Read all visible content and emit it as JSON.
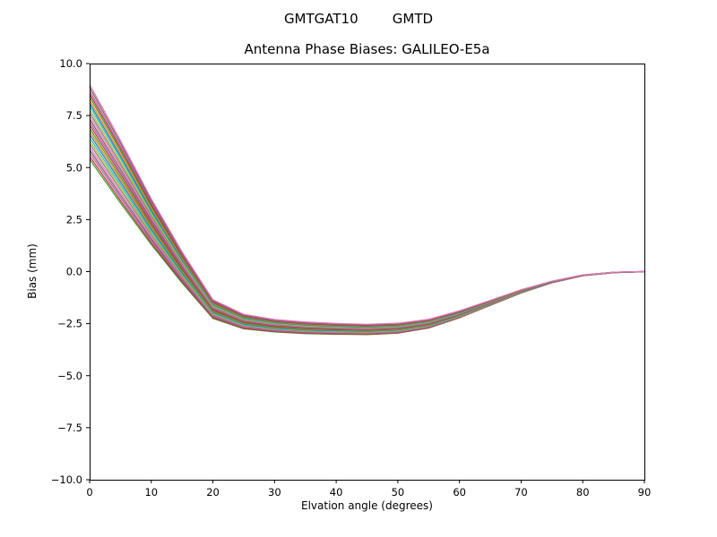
{
  "figure": {
    "suptitle": "GMTGAT10        GMTD",
    "title": "Antenna Phase Biases: GALILEO-E5a",
    "xlabel": "Elvation angle (degrees)",
    "ylabel": "Bias (mm)"
  },
  "chart_data": {
    "type": "line",
    "suptitle": "GMTGAT10        GMTD",
    "title": "Antenna Phase Biases: GALILEO-E5a",
    "xlabel": "Elvation angle (degrees)",
    "ylabel": "Bias (mm)",
    "xlim": [
      0,
      90
    ],
    "ylim": [
      -10,
      10
    ],
    "xticks": [
      0,
      10,
      20,
      30,
      40,
      50,
      60,
      70,
      80,
      90
    ],
    "xtick_labels": [
      "0",
      "10",
      "20",
      "30",
      "40",
      "50",
      "60",
      "70",
      "80",
      "90"
    ],
    "yticks": [
      10,
      7.5,
      5,
      2.5,
      0,
      -2.5,
      -5,
      -7.5,
      -10
    ],
    "ytick_labels": [
      "10.0",
      "7.5",
      "5.0",
      "2.5",
      "0.0",
      "−2.5",
      "−5.0",
      "−7.5",
      "−10.0"
    ],
    "grid": false,
    "legend": "none",
    "description": "Bundle of ~25 overlapping antenna phase bias curves, one per satellite/antenna, fanned out at low elevation (5.4 to 9.0 mm at 0 deg), descending steeply to a shallow minimum near -2.5 to -3.0 mm around 40-50 deg, then converging back to 0 mm by 85-90 deg.",
    "x": [
      0,
      5,
      10,
      15,
      20,
      25,
      30,
      35,
      40,
      45,
      50,
      55,
      60,
      65,
      70,
      75,
      80,
      85,
      90
    ],
    "envelope": {
      "base": [
        7.2,
        4.8,
        2.4,
        0.2,
        -1.8,
        -2.4,
        -2.6,
        -2.7,
        -2.75,
        -2.78,
        -2.72,
        -2.5,
        -2.05,
        -1.5,
        -0.95,
        -0.5,
        -0.18,
        -0.04,
        0
      ],
      "half_spread": [
        1.8,
        1.5,
        1.1,
        0.75,
        0.45,
        0.35,
        0.3,
        0.28,
        0.26,
        0.25,
        0.24,
        0.21,
        0.17,
        0.12,
        0.08,
        0.04,
        0.02,
        0.01,
        0.005
      ]
    },
    "series_offsets": [
      -1,
      -0.92,
      -0.83,
      -0.75,
      -0.67,
      -0.58,
      -0.5,
      -0.42,
      -0.33,
      -0.25,
      -0.17,
      -0.08,
      0,
      0.08,
      0.17,
      0.25,
      0.33,
      0.42,
      0.5,
      0.58,
      0.67,
      0.75,
      0.83,
      0.92,
      1
    ],
    "series_rule": "series[i].y[j] = envelope.base[j] + series_offsets[i] * envelope.half_spread[j]; color = colors[i % colors.length]",
    "colors": [
      "#2ca02c",
      "#d62728",
      "#9467bd",
      "#8c564b",
      "#e377c2",
      "#7f7f7f",
      "#bcbd22",
      "#17becf",
      "#1f77b4",
      "#ff7f0e"
    ],
    "line_width": 1.2
  }
}
